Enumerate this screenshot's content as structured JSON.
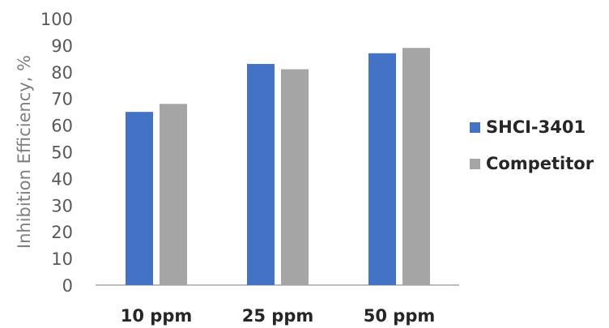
{
  "chart_data": {
    "type": "bar",
    "ylabel": "Inhibition Efficiency, %",
    "xlabel": "",
    "ylim": [
      0,
      100
    ],
    "yticks": [
      0,
      10,
      20,
      30,
      40,
      50,
      60,
      70,
      80,
      90,
      100
    ],
    "categories": [
      "10 ppm",
      "25 ppm",
      "50 ppm"
    ],
    "series": [
      {
        "name": "SHCI-3401",
        "values": [
          65,
          83,
          87
        ]
      },
      {
        "name": "Competitor",
        "values": [
          68,
          81,
          89
        ]
      }
    ],
    "legend_position": "right",
    "grid": false,
    "colors": {
      "SHCI-3401": "#4472c4",
      "Competitor": "#a5a5a5",
      "axis": "#a6a6a6"
    }
  }
}
